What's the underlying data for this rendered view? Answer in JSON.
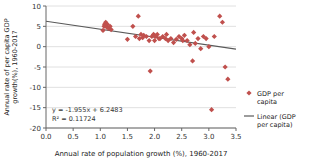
{
  "chart_data": {
    "type": "scatter",
    "xlabel": "Annual rate of population growth (%), 1960-2017",
    "ylabel": "Annual rate of per capita GDP\ngrowth(%), 1960-2017",
    "series": [
      {
        "name": "GDP per\ncapita",
        "type": "scatter",
        "color": "#c0504d",
        "marker": "diamond",
        "x": [
          1.05,
          1.07,
          1.08,
          1.1,
          1.1,
          1.12,
          1.13,
          1.15,
          1.18,
          1.2,
          1.5,
          1.6,
          1.65,
          1.7,
          1.72,
          1.75,
          1.78,
          1.8,
          1.85,
          1.9,
          1.92,
          1.95,
          1.98,
          2.0,
          2.0,
          2.02,
          2.05,
          2.08,
          2.1,
          2.15,
          2.2,
          2.22,
          2.25,
          2.3,
          2.35,
          2.4,
          2.45,
          2.5,
          2.52,
          2.55,
          2.6,
          2.65,
          2.7,
          2.72,
          2.75,
          2.8,
          2.85,
          2.9,
          2.95,
          3.0,
          3.05,
          3.1,
          3.2,
          3.25,
          3.3,
          3.35
        ],
        "values": [
          4.0,
          5.0,
          5.5,
          6.0,
          5.2,
          4.8,
          5.5,
          4.5,
          5.0,
          4.2,
          1.8,
          5.0,
          2.5,
          7.5,
          2.0,
          3.0,
          2.2,
          2.8,
          2.5,
          1.5,
          -6.0,
          2.5,
          3.0,
          1.5,
          2.8,
          2.5,
          3.0,
          2.0,
          2.0,
          2.5,
          2.0,
          3.0,
          1.5,
          2.0,
          1.0,
          1.8,
          2.5,
          2.0,
          1.5,
          2.8,
          1.5,
          0.5,
          -3.5,
          3.5,
          0.8,
          2.0,
          -0.5,
          2.5,
          2.0,
          0.0,
          -15.5,
          2.5,
          7.5,
          6.0,
          -5.0,
          -8.0
        ]
      },
      {
        "name": "Linear (GDP\nper capita)",
        "type": "line",
        "color": "#595959",
        "line_style": "solid",
        "x": [
          0,
          3.5
        ],
        "values": [
          6.2483,
          -0.5942
        ]
      }
    ],
    "annotations": [
      "y = -1.955x + 6.2483",
      "R² = 0.11724"
    ],
    "xlim": [
      0,
      3.5
    ],
    "ylim": [
      -20,
      10
    ],
    "xticks": [
      {
        "value": 0,
        "label": "0.0"
      },
      0.5,
      {
        "value": 1,
        "label": "1.0"
      },
      1.5,
      {
        "value": 2,
        "label": "2.0"
      },
      2.5,
      {
        "value": 3,
        "label": "3.0"
      },
      3.5
    ],
    "yticks": [
      -20,
      -15,
      -10,
      -5,
      0,
      5,
      10
    ],
    "grid": true,
    "legend": "lower right"
  }
}
